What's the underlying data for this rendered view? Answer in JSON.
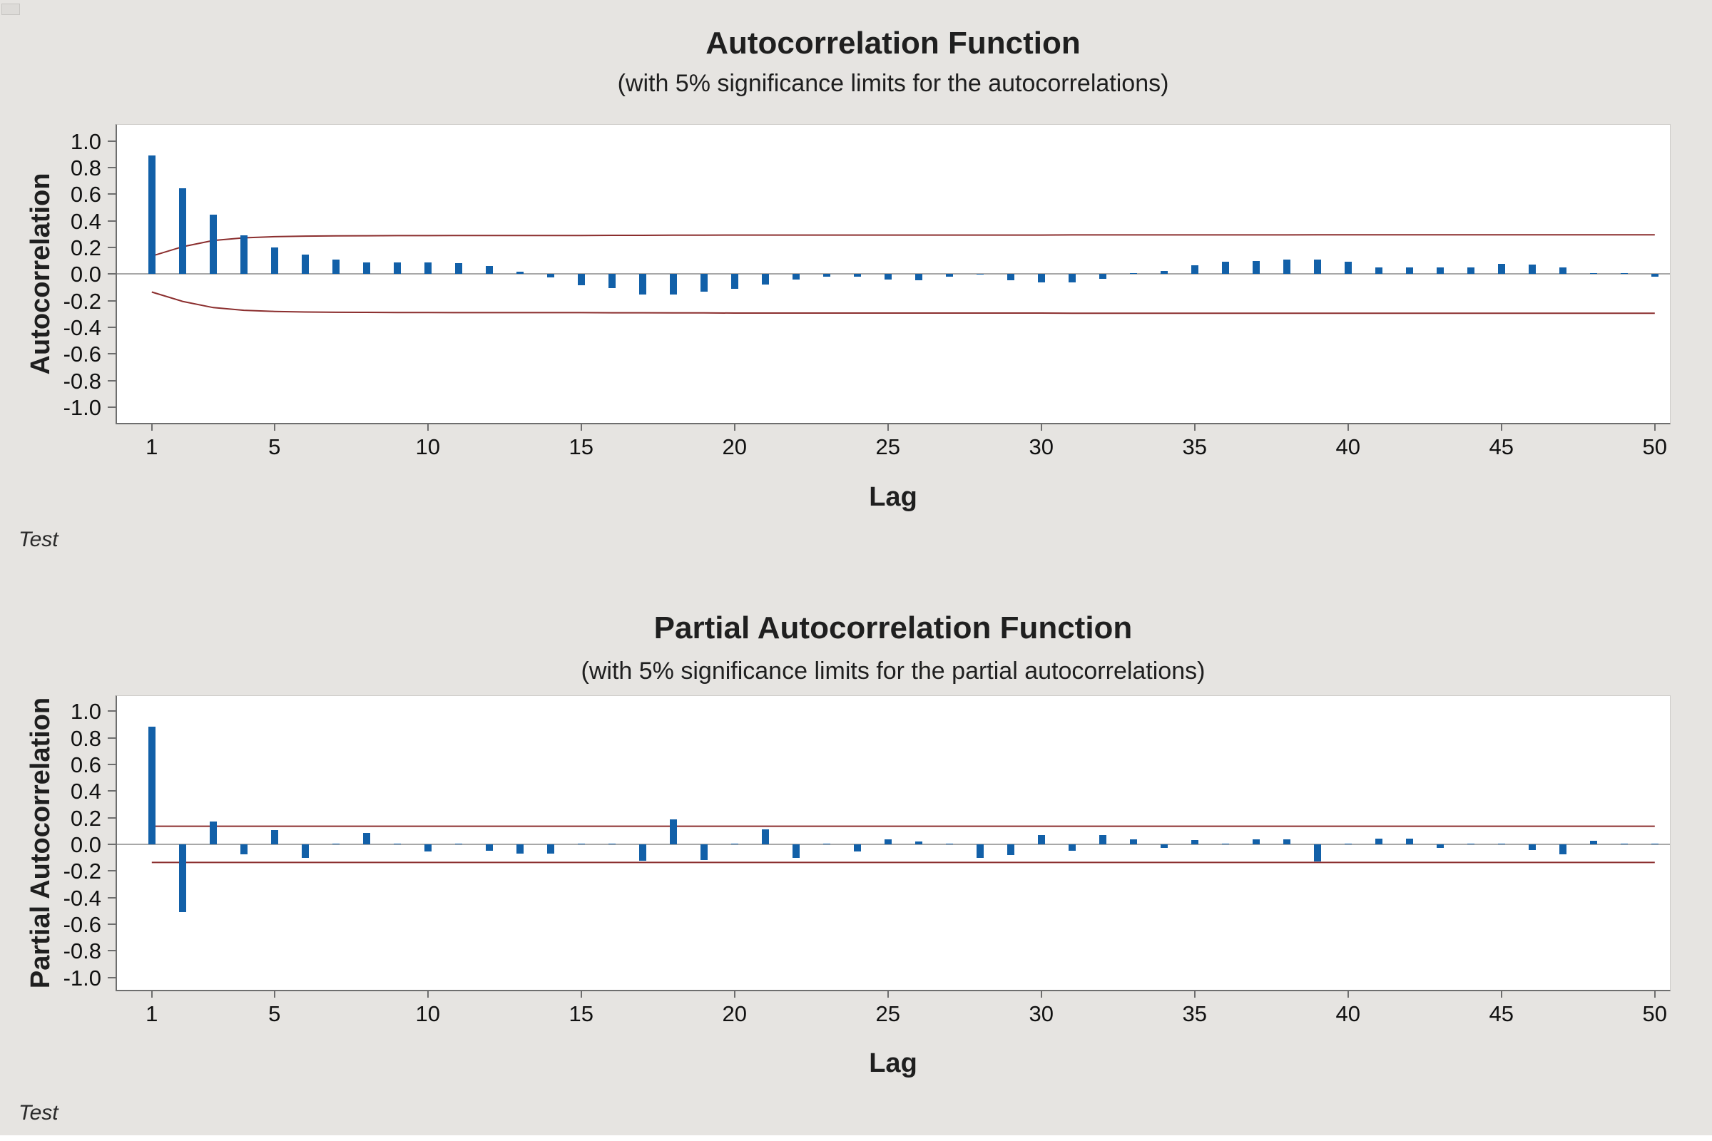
{
  "page": {
    "background": "#e6e4e1"
  },
  "colors": {
    "bar_blue": "#1260a8",
    "significance_red": "#8b2e2e",
    "zero_line_gray": "#a8a8a8",
    "axis_gray": "#6e6e6e",
    "text": "#1f1f1f"
  },
  "chart_data": [
    {
      "type": "bar",
      "title": "Autocorrelation Function",
      "subtitle": "(with 5% significance limits for the autocorrelations)",
      "xlabel": "Lag",
      "ylabel": "Autocorrelation",
      "footnote": "Test",
      "ylim": [
        -1.0,
        1.0
      ],
      "yticks": [
        1.0,
        0.8,
        0.6,
        0.4,
        0.2,
        0.0,
        -0.2,
        -0.4,
        -0.6,
        -0.8,
        -1.0
      ],
      "xticks": [
        1,
        5,
        10,
        15,
        20,
        25,
        30,
        35,
        40,
        45,
        50
      ],
      "x": [
        1,
        2,
        3,
        4,
        5,
        6,
        7,
        8,
        9,
        10,
        11,
        12,
        13,
        14,
        15,
        16,
        17,
        18,
        19,
        20,
        21,
        22,
        23,
        24,
        25,
        26,
        27,
        28,
        29,
        30,
        31,
        32,
        33,
        34,
        35,
        36,
        37,
        38,
        39,
        40,
        41,
        42,
        43,
        44,
        45,
        46,
        47,
        48,
        49,
        50
      ],
      "values": [
        0.89,
        0.645,
        0.445,
        0.29,
        0.2,
        0.148,
        0.11,
        0.085,
        0.085,
        0.085,
        0.082,
        0.062,
        0.018,
        -0.023,
        -0.083,
        -0.107,
        -0.152,
        -0.152,
        -0.13,
        -0.11,
        -0.08,
        -0.042,
        -0.022,
        -0.018,
        -0.04,
        -0.047,
        -0.022,
        -0.005,
        -0.048,
        -0.065,
        -0.065,
        -0.038,
        0.005,
        0.022,
        0.068,
        0.092,
        0.096,
        0.11,
        0.11,
        0.094,
        0.05,
        0.05,
        0.05,
        0.05,
        0.078,
        0.072,
        0.05,
        0.005,
        0.005,
        -0.018
      ],
      "significance_limits": {
        "style": "curve",
        "upper": [
          0.135,
          0.205,
          0.252,
          0.272,
          0.281,
          0.285,
          0.287,
          0.288,
          0.289,
          0.289,
          0.29,
          0.29,
          0.29,
          0.29,
          0.29,
          0.291,
          0.291,
          0.292,
          0.292,
          0.293,
          0.293,
          0.293,
          0.293,
          0.293,
          0.293,
          0.293,
          0.293,
          0.293,
          0.293,
          0.293,
          0.294,
          0.294,
          0.294,
          0.294,
          0.294,
          0.294,
          0.294,
          0.294,
          0.295,
          0.295,
          0.295,
          0.295,
          0.295,
          0.295,
          0.295,
          0.295,
          0.295,
          0.295,
          0.295,
          0.295
        ]
      },
      "grid": false,
      "legend": "none"
    },
    {
      "type": "bar",
      "title": "Partial Autocorrelation Function",
      "subtitle": "(with 5% significance limits for the partial autocorrelations)",
      "xlabel": "Lag",
      "ylabel": "Partial Autocorrelation",
      "footnote": "Test",
      "ylim": [
        -1.0,
        1.0
      ],
      "yticks": [
        1.0,
        0.8,
        0.6,
        0.4,
        0.2,
        0.0,
        -0.2,
        -0.4,
        -0.6,
        -0.8,
        -1.0
      ],
      "xticks": [
        1,
        5,
        10,
        15,
        20,
        25,
        30,
        35,
        40,
        45,
        50
      ],
      "x": [
        1,
        2,
        3,
        4,
        5,
        6,
        7,
        8,
        9,
        10,
        11,
        12,
        13,
        14,
        15,
        16,
        17,
        18,
        19,
        20,
        21,
        22,
        23,
        24,
        25,
        26,
        27,
        28,
        29,
        30,
        31,
        32,
        33,
        34,
        35,
        36,
        37,
        38,
        39,
        40,
        41,
        42,
        43,
        44,
        45,
        46,
        47,
        48,
        49,
        50
      ],
      "values": [
        0.885,
        -0.51,
        0.17,
        -0.075,
        0.105,
        -0.1,
        0.005,
        0.085,
        0.005,
        -0.055,
        0.005,
        -0.047,
        -0.072,
        -0.07,
        0.005,
        0.005,
        -0.125,
        0.19,
        -0.12,
        0.005,
        0.113,
        -0.1,
        0.005,
        -0.052,
        0.04,
        0.02,
        0.005,
        -0.1,
        -0.078,
        0.07,
        -0.047,
        0.07,
        0.04,
        -0.027,
        0.03,
        0.005,
        0.04,
        0.04,
        -0.13,
        0.005,
        0.042,
        0.042,
        -0.025,
        0.005,
        0.005,
        -0.043,
        -0.075,
        0.025,
        0.005,
        0.005
      ],
      "significance_limits": {
        "style": "flat",
        "value": 0.136
      },
      "grid": false,
      "legend": "none"
    }
  ]
}
